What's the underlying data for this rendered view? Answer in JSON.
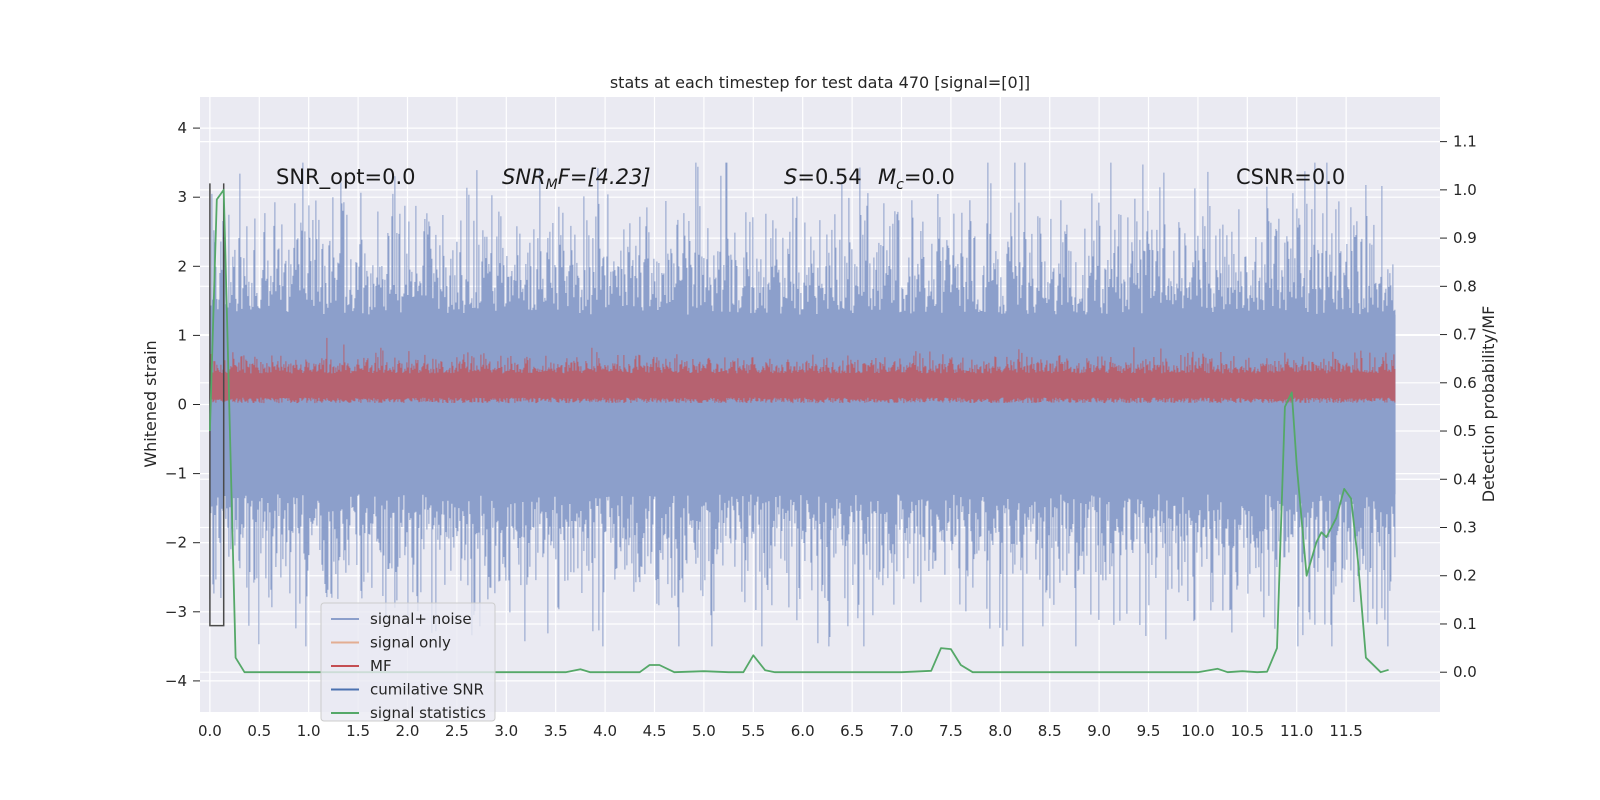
{
  "chart_data": {
    "type": "line",
    "title": "stats at each timestep for test data 470 [signal=[0]]",
    "ylabel": "Whitened strain",
    "y2label": "Detection probability/MF",
    "xlim": [
      -0.1,
      12.45
    ],
    "ylim": [
      -4.45,
      4.45
    ],
    "y2lim": [
      -0.0825,
      1.1925
    ],
    "x_ticks": [
      "0.0",
      "0.5",
      "1.0",
      "1.5",
      "2.0",
      "2.5",
      "3.0",
      "3.5",
      "4.0",
      "4.5",
      "5.0",
      "5.5",
      "6.0",
      "6.5",
      "7.0",
      "7.5",
      "8.0",
      "8.5",
      "9.0",
      "9.5",
      "10.0",
      "10.5",
      "11.0",
      "11.5"
    ],
    "y_ticks": [
      "4",
      "3",
      "2",
      "1",
      "0",
      "−1",
      "−2",
      "−3",
      "−4"
    ],
    "y2_ticks": [
      "1.1",
      "1.0",
      "0.9",
      "0.8",
      "0.7",
      "0.6",
      "0.5",
      "0.4",
      "0.3",
      "0.2",
      "0.1",
      "0.0"
    ],
    "grid": true,
    "legend_position": "bottom-left",
    "annotations": {
      "snr_opt": "SNR_opt=0.0",
      "snr_mf_var": "SNR",
      "snr_mf_sub": "M",
      "snr_mf_rest": "F=[4.23]",
      "s_var": "S",
      "s_val": "=0.54",
      "mc_var": "M",
      "mc_sub": "c",
      "mc_val": "=0.0",
      "csnr": "CSNR=0.0"
    },
    "series": [
      {
        "name": "signal+ noise",
        "color": "#8c9fcb",
        "t_range": [
          0.0,
          12.0
        ],
        "typical_range": [
          -1.3,
          1.3
        ],
        "extreme_range": [
          -4.1,
          4.1
        ]
      },
      {
        "name": "signal only",
        "color": "#dd8452",
        "values_constant": 0.0
      },
      {
        "name": "MF",
        "color": "#c44e52",
        "t_range": [
          0.0,
          12.0
        ],
        "typical_range": [
          0.05,
          0.6
        ],
        "peak": 1.0
      },
      {
        "name": "cumilative SNR",
        "color": "#4c72b0",
        "x": [
          0.0,
          0.0,
          0.14,
          0.14
        ],
        "y": [
          3.2,
          -3.2,
          -3.2,
          3.2
        ]
      },
      {
        "name": "signal statistics",
        "color": "#55a868",
        "x": [
          0.0,
          0.07,
          0.14,
          0.19,
          0.26,
          0.35,
          0.5,
          1.0,
          2.0,
          3.0,
          3.6,
          3.75,
          3.85,
          4.0,
          4.35,
          4.45,
          4.55,
          4.7,
          5.0,
          5.25,
          5.4,
          5.5,
          5.62,
          5.72,
          6.0,
          6.5,
          7.0,
          7.3,
          7.4,
          7.5,
          7.6,
          7.72,
          8.0,
          9.0,
          10.0,
          10.2,
          10.3,
          10.45,
          10.6,
          10.7,
          10.8,
          10.88,
          10.95,
          11.0,
          11.1,
          11.2,
          11.25,
          11.3,
          11.4,
          11.48,
          11.55,
          11.62,
          11.7,
          11.85,
          11.93
        ],
        "y": [
          0.5,
          0.98,
          1.0,
          0.6,
          0.03,
          0.0,
          0.0,
          0.0,
          0.0,
          0.0,
          0.0,
          0.006,
          0.0,
          0.0,
          0.0,
          0.015,
          0.015,
          0.0,
          0.002,
          0.0,
          0.0,
          0.035,
          0.004,
          0.0,
          0.0,
          0.0,
          0.0,
          0.003,
          0.05,
          0.048,
          0.015,
          0.0,
          0.0,
          0.0,
          0.0,
          0.007,
          0.0,
          0.002,
          0.0,
          0.001,
          0.05,
          0.55,
          0.58,
          0.43,
          0.2,
          0.27,
          0.29,
          0.28,
          0.32,
          0.38,
          0.36,
          0.23,
          0.03,
          0.0,
          0.005
        ]
      }
    ]
  }
}
